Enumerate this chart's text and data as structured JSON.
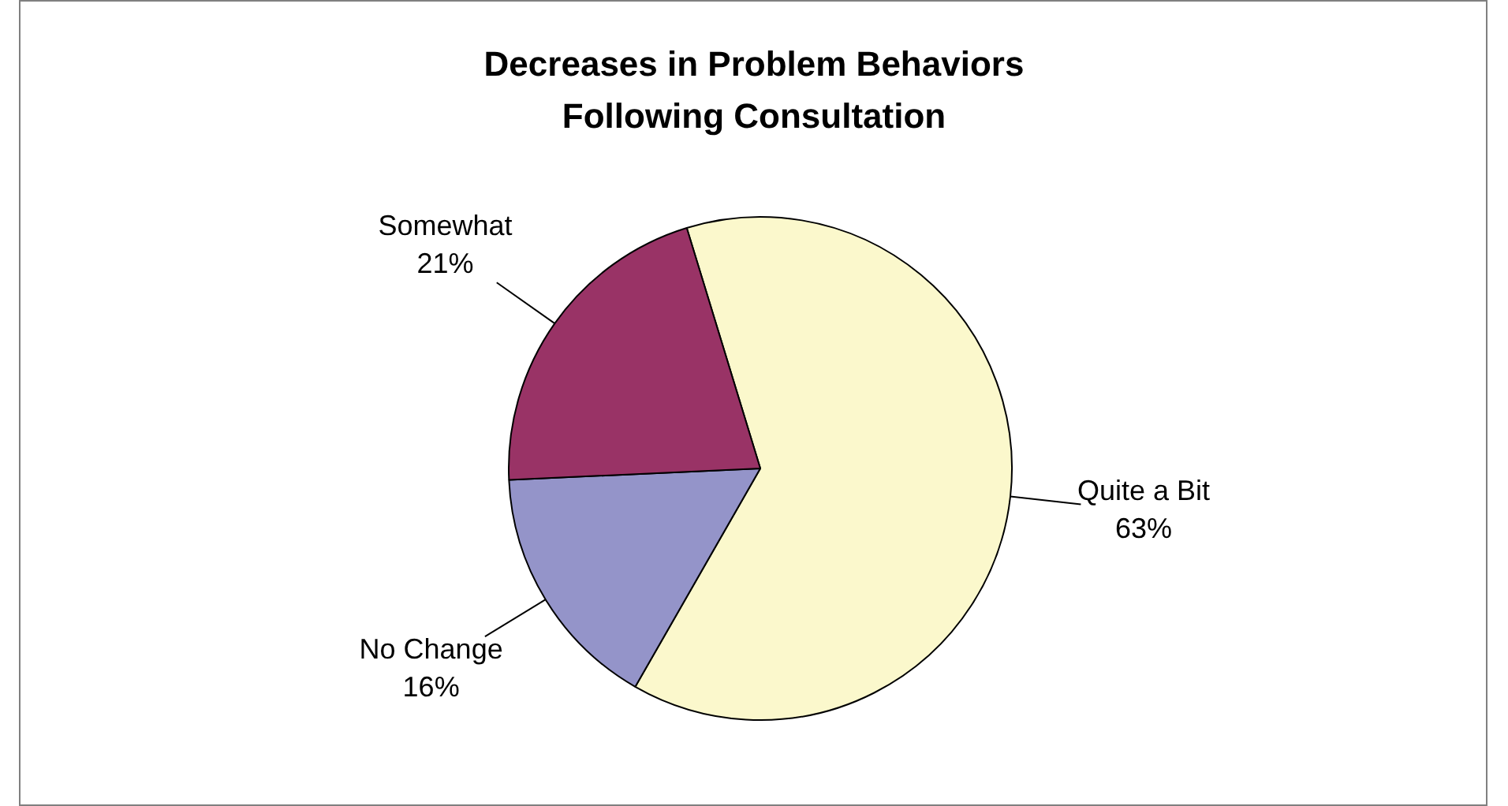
{
  "chart_data": {
    "type": "pie",
    "title": "Decreases in Problem Behaviors Following Consultation",
    "categories": [
      "Quite a Bit",
      "No Change",
      "Somewhat"
    ],
    "values": [
      63,
      16,
      21
    ],
    "colors": [
      "#fbf8cc",
      "#9494c9",
      "#993366"
    ],
    "value_labels": [
      "63%",
      "16%",
      "21%"
    ],
    "legend": false
  }
}
